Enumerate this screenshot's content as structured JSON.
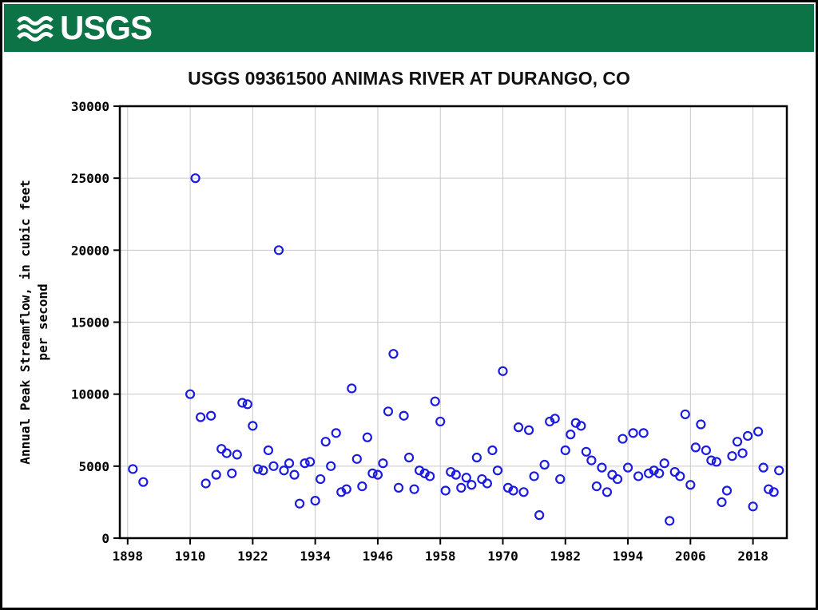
{
  "header": {
    "logo_text": "USGS",
    "banner_color": "#0b7345"
  },
  "title": "USGS 09361500 ANIMAS RIVER AT DURANGO, CO",
  "chart_data": {
    "type": "scatter",
    "title": "USGS 09361500 ANIMAS RIVER AT DURANGO, CO",
    "xlabel": "",
    "ylabel_lines": [
      "Annual Peak Streamflow, in cubic feet",
      "per second"
    ],
    "xlim": [
      1896.5,
      2024.5
    ],
    "ylim": [
      0,
      30000
    ],
    "x_ticks": [
      1898,
      1910,
      1922,
      1934,
      1946,
      1958,
      1970,
      1982,
      1994,
      2006,
      2018
    ],
    "y_ticks": [
      0,
      5000,
      10000,
      15000,
      20000,
      25000,
      30000
    ],
    "grid": true,
    "legend": "none",
    "marker": "open-circle",
    "colors": {
      "point": "#1a1ae0",
      "grid": "#c8c8c8",
      "axis": "#000000"
    },
    "points": [
      [
        1899,
        4800
      ],
      [
        1901,
        3900
      ],
      [
        1910,
        10000
      ],
      [
        1911,
        25000
      ],
      [
        1912,
        8400
      ],
      [
        1913,
        3800
      ],
      [
        1914,
        8500
      ],
      [
        1915,
        4400
      ],
      [
        1916,
        6200
      ],
      [
        1917,
        5900
      ],
      [
        1918,
        4500
      ],
      [
        1919,
        5800
      ],
      [
        1920,
        9400
      ],
      [
        1921,
        9300
      ],
      [
        1922,
        7800
      ],
      [
        1923,
        4800
      ],
      [
        1924,
        4700
      ],
      [
        1925,
        6100
      ],
      [
        1926,
        5000
      ],
      [
        1927,
        20000
      ],
      [
        1928,
        4700
      ],
      [
        1929,
        5200
      ],
      [
        1930,
        4400
      ],
      [
        1931,
        2400
      ],
      [
        1932,
        5200
      ],
      [
        1933,
        5300
      ],
      [
        1934,
        2600
      ],
      [
        1935,
        4100
      ],
      [
        1936,
        6700
      ],
      [
        1937,
        5000
      ],
      [
        1938,
        7300
      ],
      [
        1939,
        3200
      ],
      [
        1940,
        3400
      ],
      [
        1941,
        10400
      ],
      [
        1942,
        5500
      ],
      [
        1943,
        3600
      ],
      [
        1944,
        7000
      ],
      [
        1945,
        4500
      ],
      [
        1946,
        4400
      ],
      [
        1947,
        5200
      ],
      [
        1948,
        8800
      ],
      [
        1949,
        12800
      ],
      [
        1950,
        3500
      ],
      [
        1951,
        8500
      ],
      [
        1952,
        5600
      ],
      [
        1953,
        3400
      ],
      [
        1954,
        4700
      ],
      [
        1955,
        4500
      ],
      [
        1956,
        4300
      ],
      [
        1957,
        9500
      ],
      [
        1958,
        8100
      ],
      [
        1959,
        3300
      ],
      [
        1960,
        4600
      ],
      [
        1961,
        4400
      ],
      [
        1962,
        3500
      ],
      [
        1963,
        4200
      ],
      [
        1964,
        3700
      ],
      [
        1965,
        5600
      ],
      [
        1966,
        4100
      ],
      [
        1967,
        3800
      ],
      [
        1968,
        6100
      ],
      [
        1969,
        4700
      ],
      [
        1970,
        11600
      ],
      [
        1971,
        3500
      ],
      [
        1972,
        3300
      ],
      [
        1973,
        7700
      ],
      [
        1974,
        3200
      ],
      [
        1975,
        7500
      ],
      [
        1976,
        4300
      ],
      [
        1977,
        1600
      ],
      [
        1978,
        5100
      ],
      [
        1979,
        8100
      ],
      [
        1980,
        8300
      ],
      [
        1981,
        4100
      ],
      [
        1982,
        6100
      ],
      [
        1983,
        7200
      ],
      [
        1984,
        8000
      ],
      [
        1985,
        7800
      ],
      [
        1986,
        6000
      ],
      [
        1987,
        5400
      ],
      [
        1988,
        3600
      ],
      [
        1989,
        4900
      ],
      [
        1990,
        3200
      ],
      [
        1991,
        4400
      ],
      [
        1992,
        4100
      ],
      [
        1993,
        6900
      ],
      [
        1994,
        4900
      ],
      [
        1995,
        7300
      ],
      [
        1996,
        4300
      ],
      [
        1997,
        7300
      ],
      [
        1998,
        4500
      ],
      [
        1999,
        4700
      ],
      [
        2000,
        4500
      ],
      [
        2001,
        5200
      ],
      [
        2002,
        1200
      ],
      [
        2003,
        4600
      ],
      [
        2004,
        4300
      ],
      [
        2005,
        8600
      ],
      [
        2006,
        3700
      ],
      [
        2007,
        6300
      ],
      [
        2008,
        7900
      ],
      [
        2009,
        6100
      ],
      [
        2010,
        5400
      ],
      [
        2011,
        5300
      ],
      [
        2012,
        2500
      ],
      [
        2013,
        3300
      ],
      [
        2014,
        5700
      ],
      [
        2015,
        6700
      ],
      [
        2016,
        5900
      ],
      [
        2017,
        7100
      ],
      [
        2018,
        2200
      ],
      [
        2019,
        7400
      ],
      [
        2020,
        4900
      ],
      [
        2021,
        3400
      ],
      [
        2022,
        3200
      ],
      [
        2023,
        4700
      ]
    ]
  }
}
